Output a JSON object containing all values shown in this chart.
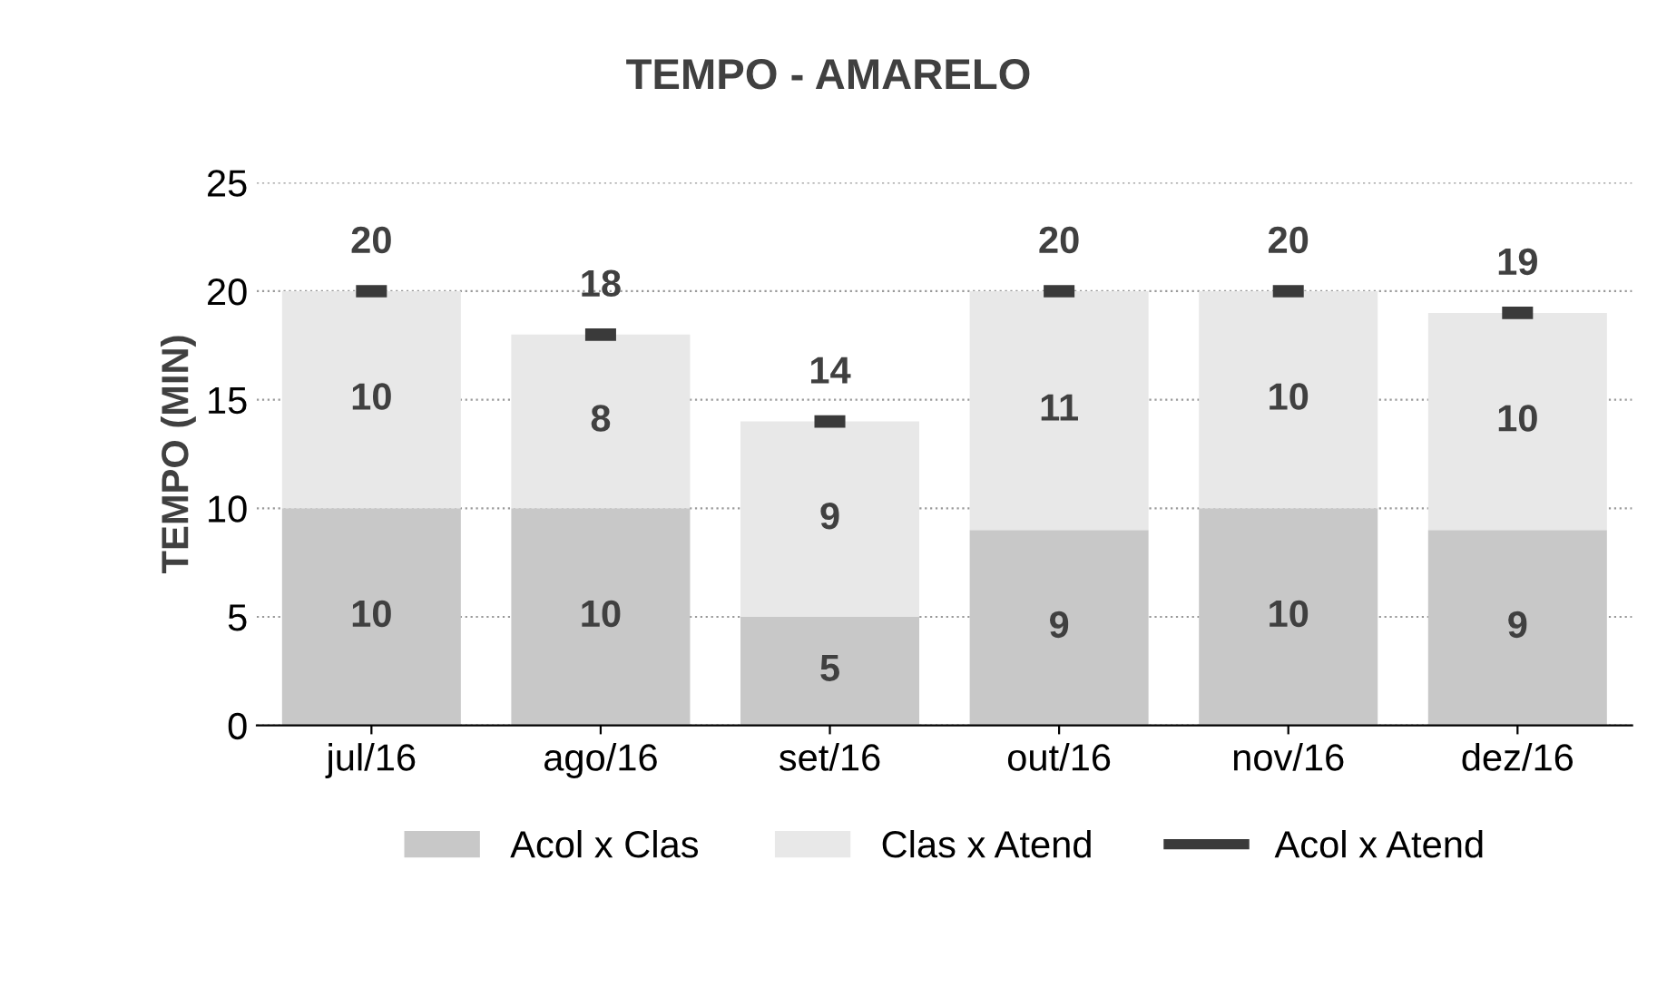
{
  "chart_data": {
    "type": "bar",
    "title": "TEMPO - AMARELO",
    "ylabel": "TEMPO (MIN)",
    "categories": [
      "jul/16",
      "ago/16",
      "set/16",
      "out/16",
      "nov/16",
      "dez/16"
    ],
    "series": [
      {
        "name": "Acol x Clas",
        "color": "#c8c8c8",
        "values": [
          10,
          10,
          5,
          9,
          10,
          9
        ]
      },
      {
        "name": "Clas x Atend",
        "color": "#e8e8e8",
        "values": [
          10,
          8,
          9,
          11,
          10,
          10
        ]
      },
      {
        "name": "Acol x Atend",
        "type": "scatter",
        "color": "#3a3a3a",
        "values": [
          20,
          18,
          14,
          20,
          20,
          19
        ]
      }
    ],
    "stacked": true,
    "ylim": [
      0,
      25
    ],
    "yticks": [
      0,
      5,
      10,
      15,
      20,
      25
    ],
    "grid": "y",
    "legend": "bottom",
    "data_labels": true
  }
}
